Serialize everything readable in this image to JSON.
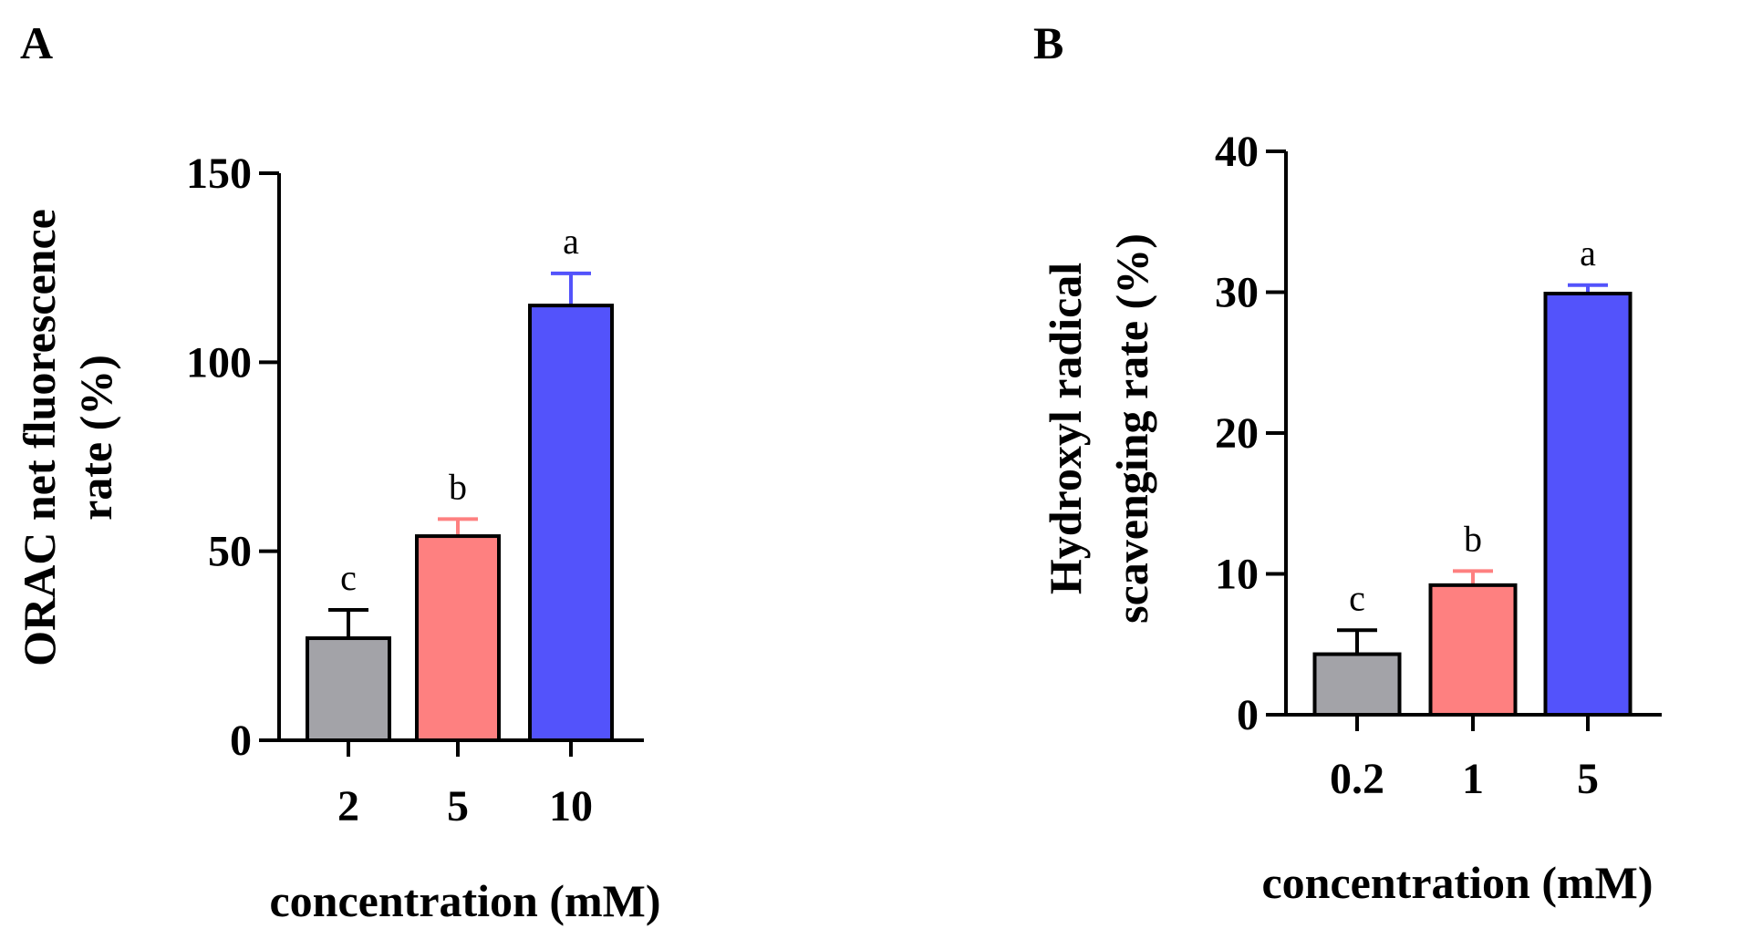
{
  "chart_data": [
    {
      "panel": "A",
      "type": "bar",
      "categories": [
        "2",
        "5",
        "10"
      ],
      "values": [
        27,
        54,
        115
      ],
      "errors": [
        7.5,
        4.5,
        8.5
      ],
      "significance": [
        "c",
        "b",
        "a"
      ],
      "colors": [
        "#a3a3a8",
        "#fe8080",
        "#5353fb"
      ],
      "ylabel_lines": [
        "ORAC net fluorescence",
        "rate (%)"
      ],
      "xlabel": "concentration (mM)",
      "ylim": [
        0,
        150
      ],
      "yticks": [
        0,
        50,
        100,
        150
      ]
    },
    {
      "panel": "B",
      "type": "bar",
      "categories": [
        "0.2",
        "1",
        "5"
      ],
      "values": [
        4.3,
        9.2,
        29.9
      ],
      "errors": [
        1.7,
        1.0,
        0.6
      ],
      "significance": [
        "c",
        "b",
        "a"
      ],
      "colors": [
        "#a3a3a8",
        "#fe8080",
        "#5353fb"
      ],
      "ylabel_lines": [
        "Hydroxyl radical",
        "scavenging rate (%)"
      ],
      "xlabel": "concentration (mM)",
      "ylim": [
        0,
        40
      ],
      "yticks": [
        0,
        10,
        20,
        30,
        40
      ]
    }
  ]
}
